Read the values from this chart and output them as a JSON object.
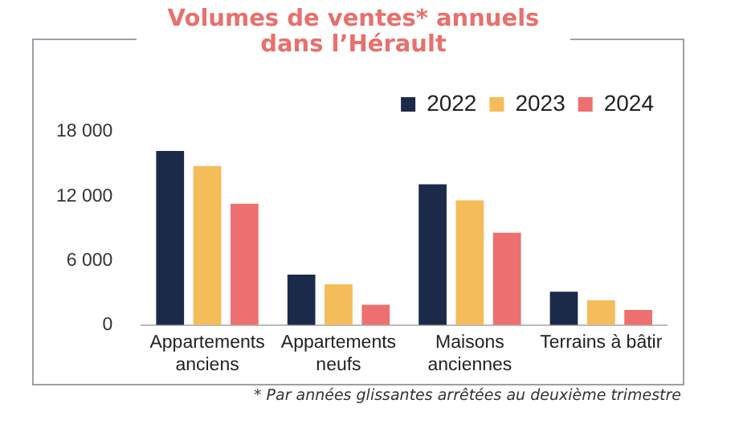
{
  "chart_data": {
    "type": "bar",
    "title": "Volumes de ventes* annuels dans l’Hérault",
    "categories": [
      "Appartements anciens",
      "Appartements neufs",
      "Maisons anciennes",
      "Terrains à bâtir"
    ],
    "series": [
      {
        "name": "2022",
        "color": "#1c2a4a",
        "values": [
          16200,
          4700,
          13100,
          3100
        ]
      },
      {
        "name": "2023",
        "color": "#f5bc5a",
        "values": [
          14800,
          3800,
          11600,
          2300
        ]
      },
      {
        "name": "2024",
        "color": "#ee6f6f",
        "values": [
          11300,
          1900,
          8600,
          1400
        ]
      }
    ],
    "ylim": [
      0,
      18000
    ],
    "yticks": [
      {
        "value": 0,
        "label": "0"
      },
      {
        "value": 6000,
        "label": "6 000"
      },
      {
        "value": 12000,
        "label": "12 000"
      },
      {
        "value": 18000,
        "label": "18 000"
      }
    ],
    "grid": false,
    "legend": "top right",
    "annotations": [
      "* Par années glissantes arrêtées au deuxième trimestre"
    ]
  }
}
